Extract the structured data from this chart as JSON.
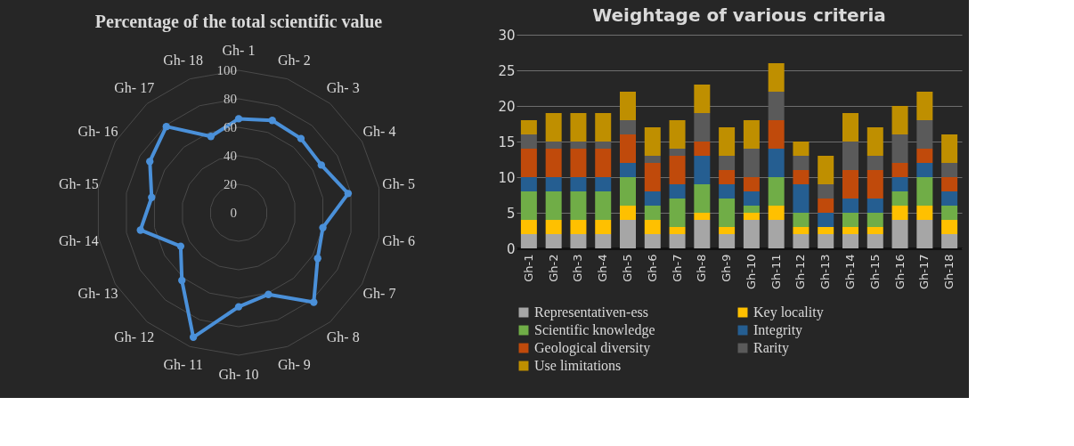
{
  "chart_data": [
    {
      "type": "radar",
      "title": "Percentage of the total scientific value",
      "categories": [
        "Gh- 1",
        "Gh- 2",
        "Gh- 3",
        "Gh- 4",
        "Gh- 5",
        "Gh- 6",
        "Gh- 7",
        "Gh- 8",
        "Gh- 9",
        "Gh- 10",
        "Gh- 11",
        "Gh- 12",
        "Gh- 13",
        "Gh- 14",
        "Gh- 15",
        "Gh- 16",
        "Gh- 17",
        "Gh- 18"
      ],
      "series": [
        {
          "color": "#4a90d9",
          "values": [
            66,
            69,
            68,
            67,
            78,
            60,
            64,
            82,
            61,
            66,
            93,
            62,
            47,
            70,
            62,
            72,
            79,
            57
          ]
        }
      ],
      "ylim": [
        0,
        100
      ],
      "yticks": [
        0,
        20,
        40,
        60,
        80,
        100
      ],
      "grid": true,
      "marker": "circle"
    },
    {
      "type": "bar",
      "stacked": true,
      "title": "Weightage of various criteria",
      "categories": [
        "Gh-1",
        "Gh-2",
        "Gh-3",
        "Gh-4",
        "Gh-5",
        "Gh-6",
        "Gh-7",
        "Gh-8",
        "Gh-9",
        "Gh-10",
        "Gh-11",
        "Gh-12",
        "Gh-13",
        "Gh-14",
        "Gh-15",
        "Gh-16",
        "Gh-17",
        "Gh-18"
      ],
      "series": [
        {
          "name": "Representativen-ess",
          "color": "#a6a6a6",
          "values": [
            2,
            2,
            2,
            2,
            4,
            2,
            2,
            4,
            2,
            4,
            4,
            2,
            2,
            2,
            2,
            4,
            4,
            2
          ]
        },
        {
          "name": "Key locality",
          "color": "#ffc000",
          "values": [
            2,
            2,
            2,
            2,
            2,
            2,
            1,
            1,
            1,
            1,
            2,
            1,
            1,
            1,
            1,
            2,
            2,
            2
          ]
        },
        {
          "name": "Scientific knowledge",
          "color": "#70ad47",
          "values": [
            4,
            4,
            4,
            4,
            4,
            2,
            4,
            4,
            4,
            1,
            4,
            2,
            0,
            2,
            2,
            2,
            4,
            2
          ]
        },
        {
          "name": "Integrity",
          "color": "#255e91",
          "values": [
            2,
            2,
            2,
            2,
            2,
            2,
            2,
            4,
            2,
            2,
            4,
            4,
            2,
            2,
            2,
            2,
            2,
            2
          ]
        },
        {
          "name": "Geological diversity",
          "color": "#c04a0b",
          "values": [
            4,
            4,
            4,
            4,
            4,
            4,
            4,
            2,
            2,
            2,
            4,
            2,
            2,
            4,
            4,
            2,
            2,
            2
          ]
        },
        {
          "name": "Rarity",
          "color": "#5a5a5a",
          "values": [
            2,
            1,
            1,
            1,
            2,
            1,
            1,
            4,
            2,
            4,
            4,
            2,
            2,
            4,
            2,
            4,
            4,
            2
          ]
        },
        {
          "name": "Use limitations",
          "color": "#bf8f00",
          "values": [
            2,
            4,
            4,
            4,
            4,
            4,
            4,
            4,
            4,
            4,
            4,
            2,
            4,
            4,
            4,
            4,
            4,
            4
          ]
        }
      ],
      "ylim": [
        0,
        30
      ],
      "yticks": [
        0,
        5,
        10,
        15,
        20,
        25,
        30
      ],
      "grid": "y",
      "legend": "bottom"
    }
  ]
}
